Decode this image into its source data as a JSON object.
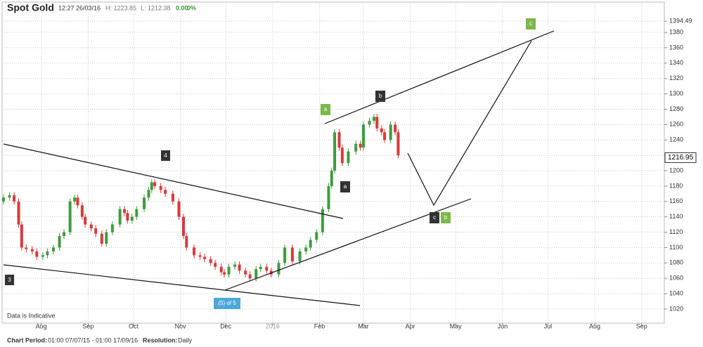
{
  "header": {
    "time": "12:27 26/03/16",
    "high": "H: 1223.85",
    "low": "L: 1212.38",
    "change": "0.00",
    "change_pct": "0%"
  },
  "chart_data": {
    "type": "candlestick",
    "title": "Spot Gold",
    "x": [
      0,
      4,
      7,
      10,
      12,
      15,
      19,
      22,
      26,
      29,
      33,
      37,
      40,
      44,
      47,
      49,
      52,
      54,
      58,
      61,
      65,
      68,
      72,
      77,
      80,
      82,
      85,
      88,
      93,
      96,
      98,
      100,
      104,
      107,
      112,
      116,
      119,
      121,
      126,
      130,
      133,
      137,
      140,
      144,
      146,
      149,
      153,
      156,
      160,
      163,
      167,
      170,
      174,
      177,
      182,
      186,
      191,
      196,
      200,
      203,
      207,
      211,
      215,
      217,
      219,
      222,
      224,
      228,
      233,
      236,
      238,
      242,
      245,
      247,
      250,
      252,
      256,
      259,
      261
    ],
    "open": [
      1160,
      1165,
      1168,
      1160,
      1130,
      1100,
      1098,
      1095,
      1088,
      1090,
      1095,
      1100,
      1115,
      1120,
      1160,
      1165,
      1155,
      1140,
      1130,
      1125,
      1118,
      1105,
      1120,
      1130,
      1150,
      1145,
      1135,
      1140,
      1150,
      1165,
      1175,
      1185,
      1180,
      1175,
      1170,
      1160,
      1140,
      1115,
      1100,
      1090,
      1088,
      1085,
      1080,
      1075,
      1068,
      1065,
      1075,
      1078,
      1070,
      1065,
      1060,
      1072,
      1075,
      1070,
      1065,
      1080,
      1100,
      1082,
      1095,
      1100,
      1110,
      1120,
      1150,
      1180,
      1200,
      1250,
      1230,
      1210,
      1225,
      1235,
      1230,
      1260,
      1265,
      1270,
      1255,
      1250,
      1240,
      1260,
      1250
    ],
    "high": [
      1169,
      1172,
      1172,
      1164,
      1134,
      1104,
      1102,
      1099,
      1094,
      1099,
      1104,
      1119,
      1124,
      1164,
      1169,
      1169,
      1159,
      1144,
      1134,
      1129,
      1122,
      1124,
      1134,
      1154,
      1154,
      1149,
      1144,
      1154,
      1169,
      1179,
      1189,
      1189,
      1184,
      1179,
      1174,
      1164,
      1144,
      1119,
      1104,
      1094,
      1092,
      1089,
      1084,
      1079,
      1072,
      1079,
      1082,
      1082,
      1074,
      1069,
      1076,
      1079,
      1079,
      1074,
      1084,
      1104,
      1104,
      1099,
      1104,
      1114,
      1124,
      1154,
      1184,
      1204,
      1254,
      1254,
      1234,
      1229,
      1239,
      1239,
      1264,
      1269,
      1274,
      1274,
      1259,
      1254,
      1264,
      1264,
      1254
    ],
    "low": [
      1156,
      1161,
      1156,
      1126,
      1096,
      1094,
      1091,
      1084,
      1084,
      1086,
      1091,
      1096,
      1111,
      1116,
      1156,
      1151,
      1136,
      1126,
      1121,
      1114,
      1101,
      1101,
      1116,
      1126,
      1141,
      1131,
      1131,
      1136,
      1146,
      1161,
      1171,
      1176,
      1171,
      1166,
      1156,
      1136,
      1111,
      1096,
      1086,
      1084,
      1081,
      1076,
      1071,
      1064,
      1061,
      1061,
      1071,
      1066,
      1061,
      1056,
      1056,
      1068,
      1066,
      1061,
      1061,
      1076,
      1078,
      1078,
      1091,
      1096,
      1106,
      1116,
      1146,
      1176,
      1196,
      1226,
      1206,
      1206,
      1221,
      1226,
      1226,
      1256,
      1261,
      1251,
      1246,
      1236,
      1236,
      1246,
      1216
    ],
    "close": [
      1165,
      1168,
      1160,
      1130,
      1100,
      1098,
      1095,
      1088,
      1090,
      1095,
      1100,
      1115,
      1120,
      1160,
      1165,
      1155,
      1140,
      1130,
      1125,
      1118,
      1105,
      1120,
      1130,
      1150,
      1145,
      1135,
      1140,
      1150,
      1165,
      1175,
      1185,
      1180,
      1175,
      1170,
      1160,
      1140,
      1115,
      1100,
      1090,
      1088,
      1085,
      1080,
      1075,
      1068,
      1065,
      1075,
      1078,
      1070,
      1065,
      1060,
      1072,
      1075,
      1070,
      1065,
      1080,
      1100,
      1082,
      1095,
      1100,
      1110,
      1120,
      1150,
      1180,
      1200,
      1250,
      1230,
      1210,
      1225,
      1235,
      1230,
      1260,
      1265,
      1270,
      1255,
      1250,
      1240,
      1260,
      1250,
      1220
    ],
    "up_color": "#3f9b3f",
    "down_color": "#d93a3a",
    "xlim": [
      0,
      437
    ],
    "xticks": [
      {
        "value": 25,
        "label": "Aug"
      },
      {
        "value": 56,
        "label": "Sep"
      },
      {
        "value": 86,
        "label": "Oct"
      },
      {
        "value": 117,
        "label": "Nov"
      },
      {
        "value": 147,
        "label": "Dec"
      },
      {
        "value": 178,
        "label": "2016"
      },
      {
        "value": 209,
        "label": "Feb"
      },
      {
        "value": 238,
        "label": "Mar"
      },
      {
        "value": 269,
        "label": "Apr"
      },
      {
        "value": 299,
        "label": "May"
      },
      {
        "value": 330,
        "label": "Jun"
      },
      {
        "value": 360,
        "label": "Jul"
      },
      {
        "value": 391,
        "label": "Aug"
      },
      {
        "value": 422,
        "label": "Sep"
      }
    ],
    "ylim": [
      1001.7,
      1417.5
    ],
    "yticks": [
      1020,
      1040,
      1060,
      1080,
      1100,
      1120,
      1140,
      1160,
      1180,
      1200,
      1220,
      1240,
      1260,
      1280,
      1300,
      1320,
      1340,
      1360,
      1380,
      1394.49
    ],
    "last_price": 1216.95,
    "grid": true,
    "annotations": [
      "3",
      "4",
      "(5) of 5",
      "a",
      "a",
      "b",
      "c",
      "c",
      "b"
    ],
    "note": "Data is Indicative"
  },
  "footer": {
    "period_label": "Chart Period:",
    "period": "01:00 07/07/15 - 01:00 17/09/16",
    "resolution_label": "Resolution:",
    "resolution": "Daily"
  }
}
